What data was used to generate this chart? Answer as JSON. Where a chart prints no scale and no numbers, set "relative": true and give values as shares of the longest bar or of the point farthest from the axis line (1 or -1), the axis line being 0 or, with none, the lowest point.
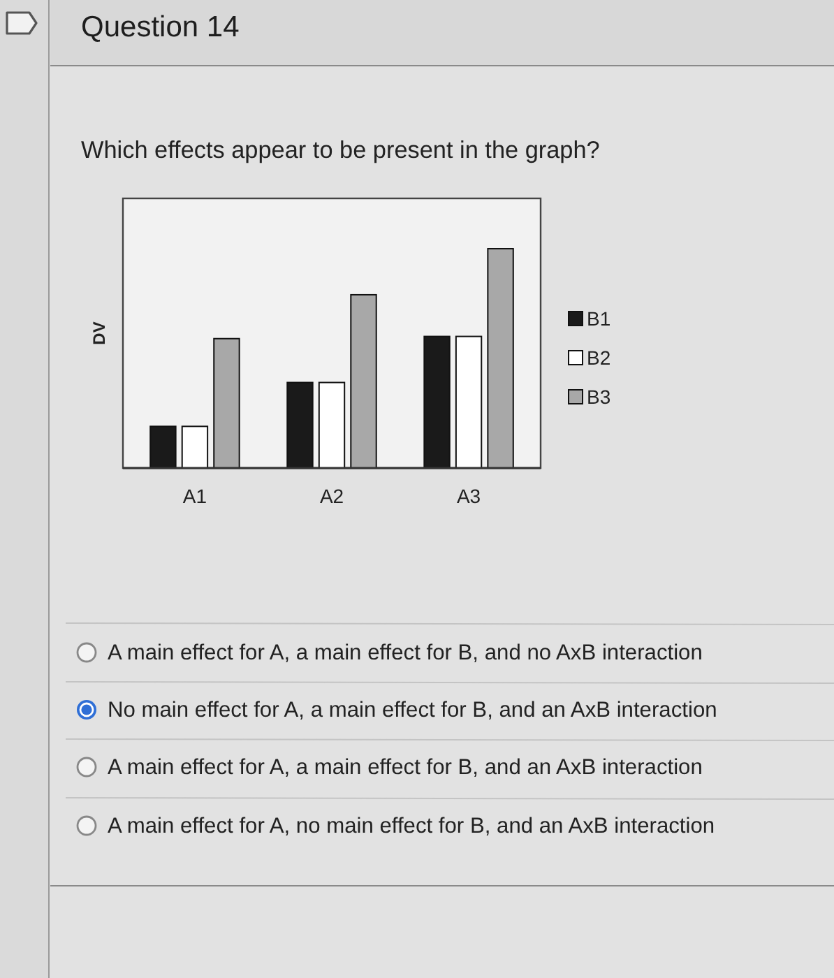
{
  "chart_data": {
    "type": "bar",
    "title": "Question 14",
    "subtitle": "Which effects appear to be present in the graph?",
    "ylabel": "DV",
    "categories": [
      "A1",
      "A2",
      "A3"
    ],
    "relative": true,
    "series": [
      {
        "name": "B1",
        "color": "#1a1a1a",
        "values": [
          0.19,
          0.39,
          0.6
        ]
      },
      {
        "name": "B2",
        "color": "#ffffff",
        "values": [
          0.19,
          0.39,
          0.6
        ]
      },
      {
        "name": "B3",
        "color": "#a8a8a8",
        "values": [
          0.59,
          0.79,
          1
        ]
      }
    ],
    "legend": "right",
    "annotations": [
      "A main effect for A, a main effect for B, and no AxB interaction",
      "No main effect for A, a main effect for B, and an AxB interaction",
      "A main effect for A, a main effect for B, and an AxB interaction",
      "A main effect for A, no main effect for B, and an AxB interaction"
    ]
  }
}
